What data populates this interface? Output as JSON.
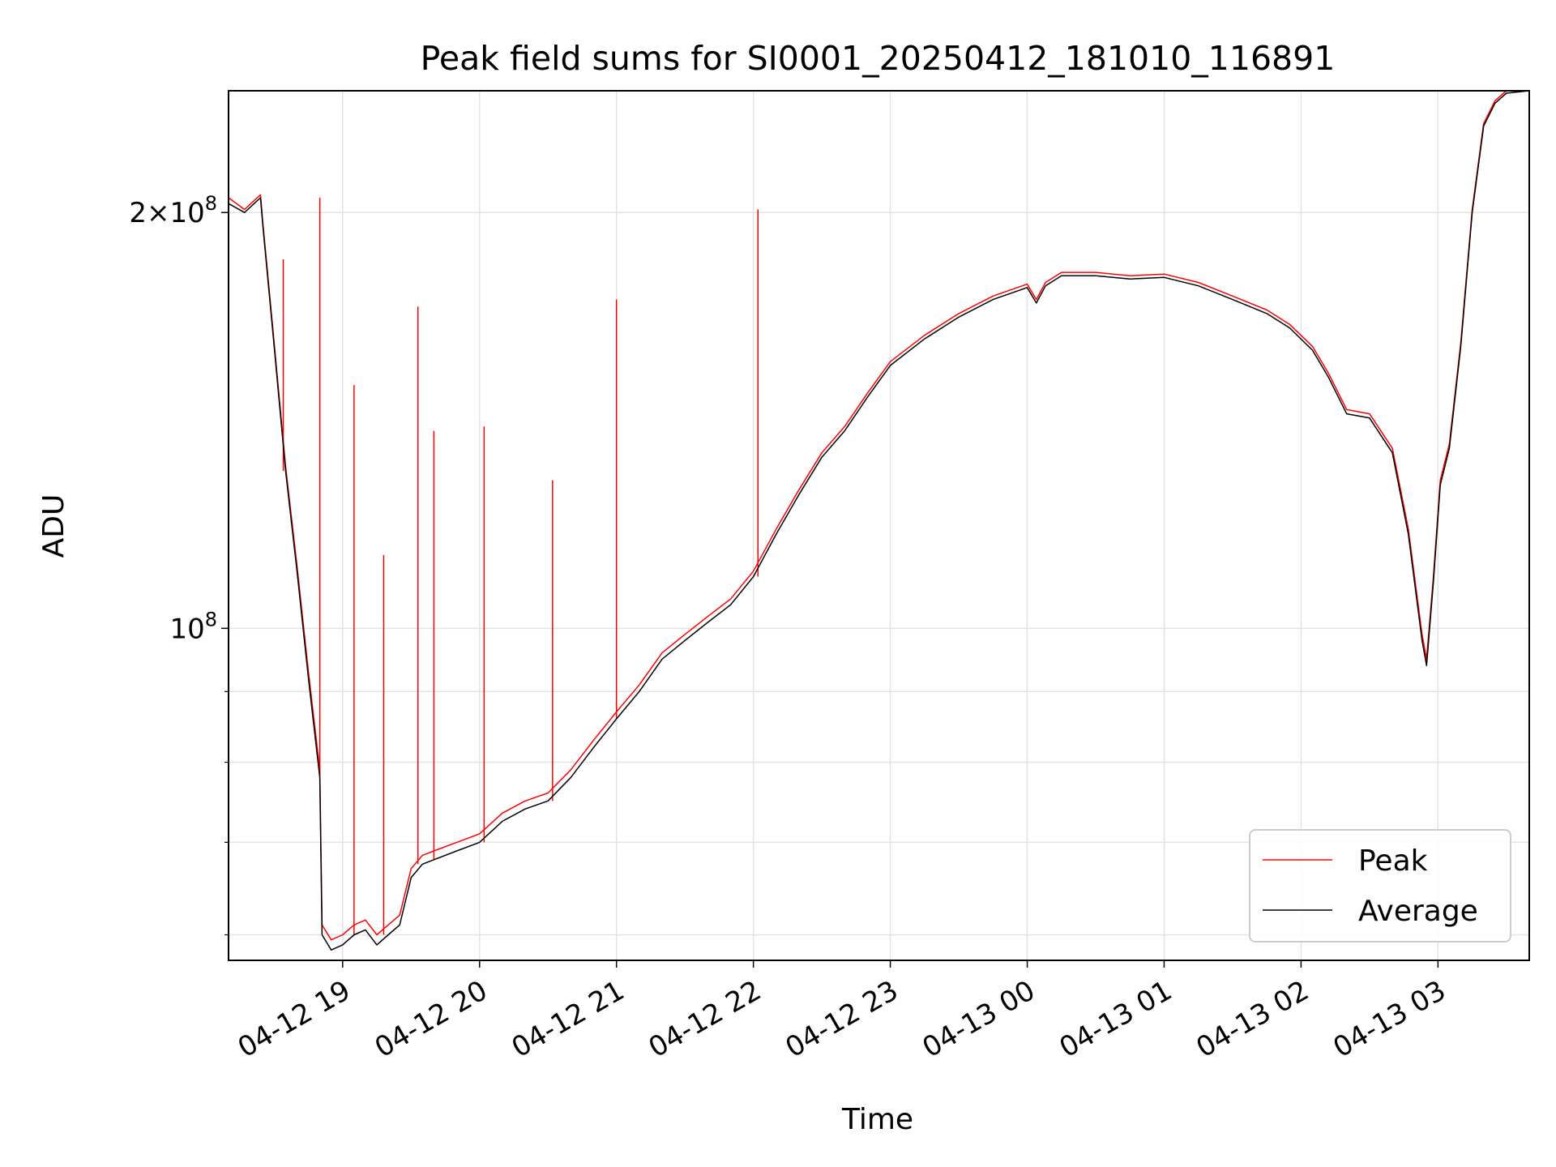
{
  "chart_data": {
    "type": "line",
    "title": "Peak field sums for SI0001_20250412_181010_116891",
    "xlabel": "Time",
    "ylabel": "ADU",
    "yscale": "log",
    "ylim": [
      57500000,
      245000000
    ],
    "xlim": [
      "2025-04-12 18:10",
      "2025-04-13 03:40"
    ],
    "grid": true,
    "legend_position": "lower-right",
    "x_ticks": [
      "2025-04-12 19:00",
      "2025-04-12 20:00",
      "2025-04-12 21:00",
      "2025-04-12 22:00",
      "2025-04-12 23:00",
      "2025-04-13 00:00",
      "2025-04-13 01:00",
      "2025-04-13 02:00",
      "2025-04-13 03:00"
    ],
    "x_tick_labels": [
      "04-12 19",
      "04-12 20",
      "04-12 21",
      "04-12 22",
      "04-12 23",
      "04-13 00",
      "04-13 01",
      "04-13 02",
      "04-13 03"
    ],
    "y_ticks": [
      {
        "value": 100000000,
        "label": "10",
        "exp": "8"
      },
      {
        "value": 200000000,
        "label": "2×10",
        "exp": "8"
      }
    ],
    "y_minor_ticks": [
      60000000,
      70000000,
      80000000,
      90000000,
      300000000
    ],
    "series": [
      {
        "name": "Average",
        "color": "#000000",
        "x": [
          "2025-04-12 18:10",
          "2025-04-12 18:17",
          "2025-04-12 18:24",
          "2025-04-12 18:25",
          "2025-04-12 18:30",
          "2025-04-12 18:35",
          "2025-04-12 18:40",
          "2025-04-12 18:45",
          "2025-04-12 18:50",
          "2025-04-12 18:51",
          "2025-04-12 18:55",
          "2025-04-12 19:00",
          "2025-04-12 19:05",
          "2025-04-12 19:10",
          "2025-04-12 19:15",
          "2025-04-12 19:20",
          "2025-04-12 19:25",
          "2025-04-12 19:30",
          "2025-04-12 19:35",
          "2025-04-12 19:40",
          "2025-04-12 19:50",
          "2025-04-12 20:00",
          "2025-04-12 20:10",
          "2025-04-12 20:20",
          "2025-04-12 20:30",
          "2025-04-12 20:40",
          "2025-04-12 20:50",
          "2025-04-12 21:00",
          "2025-04-12 21:10",
          "2025-04-12 21:20",
          "2025-04-12 21:30",
          "2025-04-12 21:40",
          "2025-04-12 21:50",
          "2025-04-12 22:00",
          "2025-04-12 22:10",
          "2025-04-12 22:20",
          "2025-04-12 22:30",
          "2025-04-12 22:40",
          "2025-04-12 22:50",
          "2025-04-12 23:00",
          "2025-04-12 23:15",
          "2025-04-12 23:30",
          "2025-04-12 23:45",
          "2025-04-13 00:00",
          "2025-04-13 00:04",
          "2025-04-13 00:08",
          "2025-04-13 00:15",
          "2025-04-13 00:30",
          "2025-04-13 00:45",
          "2025-04-13 01:00",
          "2025-04-13 01:15",
          "2025-04-13 01:30",
          "2025-04-13 01:45",
          "2025-04-13 01:55",
          "2025-04-13 02:05",
          "2025-04-13 02:12",
          "2025-04-13 02:20",
          "2025-04-13 02:30",
          "2025-04-13 02:40",
          "2025-04-13 02:47",
          "2025-04-13 02:53",
          "2025-04-13 02:55",
          "2025-04-13 02:58",
          "2025-04-13 03:01",
          "2025-04-13 03:05",
          "2025-04-13 03:10",
          "2025-04-13 03:15",
          "2025-04-13 03:20",
          "2025-04-13 03:25",
          "2025-04-13 03:30",
          "2025-04-13 03:35",
          "2025-04-13 03:40"
        ],
        "y": [
          203000000,
          200000000,
          205000000,
          196000000,
          160000000,
          130000000,
          110000000,
          92000000,
          78000000,
          60000000,
          58500000,
          59000000,
          60000000,
          60500000,
          59000000,
          60000000,
          61000000,
          66000000,
          67500000,
          68000000,
          69000000,
          70000000,
          72500000,
          74000000,
          75000000,
          78000000,
          82000000,
          86000000,
          90000000,
          95000000,
          98000000,
          101000000,
          104000000,
          109000000,
          117000000,
          125000000,
          133000000,
          139000000,
          147000000,
          155000000,
          162000000,
          168000000,
          173000000,
          176500000,
          172000000,
          177000000,
          180000000,
          180000000,
          179000000,
          179500000,
          177000000,
          173000000,
          169000000,
          165000000,
          159000000,
          152000000,
          143000000,
          142000000,
          134000000,
          117000000,
          98000000,
          94000000,
          108000000,
          127000000,
          135000000,
          160000000,
          200000000,
          231000000,
          240000000,
          244000000,
          244500000,
          245000000
        ]
      },
      {
        "name": "Peak",
        "color": "#ff0000",
        "x": [
          "2025-04-12 18:10",
          "2025-04-12 18:17",
          "2025-04-12 18:24",
          "2025-04-12 18:25",
          "2025-04-12 18:30",
          "2025-04-12 18:35",
          "2025-04-12 18:40",
          "2025-04-12 18:45",
          "2025-04-12 18:50",
          "2025-04-12 18:51",
          "2025-04-12 18:55",
          "2025-04-12 19:00",
          "2025-04-12 19:05",
          "2025-04-12 19:10",
          "2025-04-12 19:15",
          "2025-04-12 19:20",
          "2025-04-12 19:25",
          "2025-04-12 19:30",
          "2025-04-12 19:35",
          "2025-04-12 19:40",
          "2025-04-12 19:50",
          "2025-04-12 20:00",
          "2025-04-12 20:10",
          "2025-04-12 20:20",
          "2025-04-12 20:30",
          "2025-04-12 20:40",
          "2025-04-12 20:50",
          "2025-04-12 21:00",
          "2025-04-12 21:10",
          "2025-04-12 21:20",
          "2025-04-12 21:30",
          "2025-04-12 21:40",
          "2025-04-12 21:50",
          "2025-04-12 22:00",
          "2025-04-12 22:10",
          "2025-04-12 22:20",
          "2025-04-12 22:30",
          "2025-04-12 22:40",
          "2025-04-12 22:50",
          "2025-04-12 23:00",
          "2025-04-12 23:15",
          "2025-04-12 23:30",
          "2025-04-12 23:45",
          "2025-04-13 00:00",
          "2025-04-13 00:04",
          "2025-04-13 00:08",
          "2025-04-13 00:15",
          "2025-04-13 00:30",
          "2025-04-13 00:45",
          "2025-04-13 01:00",
          "2025-04-13 01:15",
          "2025-04-13 01:30",
          "2025-04-13 01:45",
          "2025-04-13 01:55",
          "2025-04-13 02:05",
          "2025-04-13 02:12",
          "2025-04-13 02:20",
          "2025-04-13 02:30",
          "2025-04-13 02:40",
          "2025-04-13 02:47",
          "2025-04-13 02:53",
          "2025-04-13 02:55",
          "2025-04-13 02:58",
          "2025-04-13 03:01",
          "2025-04-13 03:05",
          "2025-04-13 03:10",
          "2025-04-13 03:15",
          "2025-04-13 03:20",
          "2025-04-13 03:25",
          "2025-04-13 03:30",
          "2025-04-13 03:35",
          "2025-04-13 03:40"
        ],
        "y": [
          205000000,
          201000000,
          206000000,
          197000000,
          161000000,
          131000000,
          111000000,
          93000000,
          79000000,
          61000000,
          59500000,
          60000000,
          61000000,
          61500000,
          60000000,
          61000000,
          62000000,
          67000000,
          68500000,
          69000000,
          70000000,
          71000000,
          73500000,
          75000000,
          76000000,
          79000000,
          83000000,
          87000000,
          91000000,
          96000000,
          99000000,
          102000000,
          105000000,
          110000000,
          118000000,
          126000000,
          134000000,
          140000000,
          148000000,
          156000000,
          163000000,
          169000000,
          174000000,
          177500000,
          173000000,
          178000000,
          181000000,
          181000000,
          180000000,
          180500000,
          178000000,
          174000000,
          170000000,
          166000000,
          160000000,
          153000000,
          144000000,
          143000000,
          135000000,
          118000000,
          99000000,
          95000000,
          109000000,
          128000000,
          136000000,
          161000000,
          201000000,
          232000000,
          241000000,
          245000000,
          245000000,
          245000000
        ],
        "spikes": [
          {
            "x": "2025-04-12 18:34",
            "y": 185000000
          },
          {
            "x": "2025-04-12 18:50",
            "y": 205000000
          },
          {
            "x": "2025-04-12 19:05",
            "y": 150000000
          },
          {
            "x": "2025-04-12 19:18",
            "y": 113000000
          },
          {
            "x": "2025-04-12 19:33",
            "y": 171000000
          },
          {
            "x": "2025-04-12 19:40",
            "y": 139000000
          },
          {
            "x": "2025-04-12 20:02",
            "y": 140000000
          },
          {
            "x": "2025-04-12 20:32",
            "y": 128000000
          },
          {
            "x": "2025-04-12 21:00",
            "y": 173000000
          },
          {
            "x": "2025-04-12 22:02",
            "y": 201000000
          }
        ]
      }
    ]
  }
}
